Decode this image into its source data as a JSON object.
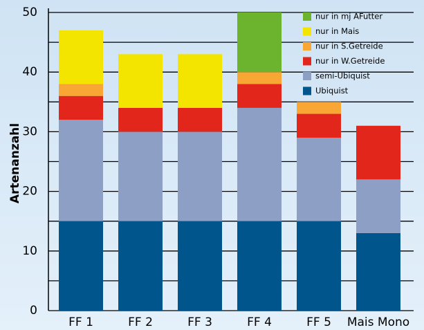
{
  "chart_data": {
    "type": "stacked_bar",
    "y_label": "Artenanzahl",
    "categories": [
      "FF 1",
      "FF 2",
      "FF 3",
      "FF 4",
      "FF 5",
      "Mais Mono"
    ],
    "series": [
      {
        "name": "Ubiquist",
        "color": "#00558c",
        "values": [
          15,
          15,
          15,
          15,
          15,
          13
        ]
      },
      {
        "name": "semi-Ubiquist",
        "color": "#8e9fc5",
        "values": [
          17,
          15,
          15,
          19,
          14,
          9
        ]
      },
      {
        "name": "nur in W.Getreide",
        "color": "#e3261b",
        "values": [
          4,
          4,
          4,
          4,
          4,
          9
        ]
      },
      {
        "name": "nur in S.Getreide",
        "color": "#f8a634",
        "values": [
          2,
          0,
          0,
          2,
          2,
          0
        ]
      },
      {
        "name": "nur in Mais",
        "color": "#f3e500",
        "values": [
          9,
          9,
          9,
          0,
          0,
          0
        ]
      },
      {
        "name": "nur in mj AFutter",
        "color": "#6cb42e",
        "values": [
          0,
          0,
          0,
          10,
          0,
          0
        ]
      }
    ],
    "ylim": [
      0,
      50
    ],
    "yticks": [
      0,
      10,
      20,
      30,
      40,
      50
    ],
    "minor_yticks": [
      5,
      15,
      25,
      35,
      45
    ],
    "grid": true,
    "legend": "top-right"
  }
}
